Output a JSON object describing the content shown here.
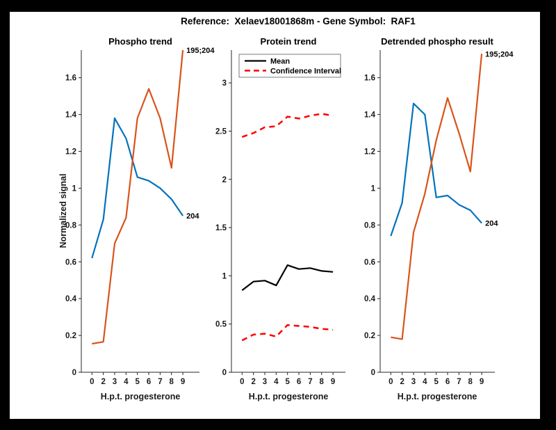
{
  "figure": {
    "title": "Reference:  Xelaev18001868m - Gene Symbol:  RAF1",
    "background": "#ffffff",
    "frame_color": "#000000"
  },
  "colors": {
    "blue": "#0072BD",
    "orange": "#D95319",
    "black": "#000000",
    "red": "#FF0000",
    "axis": "#262626"
  },
  "chart_data": [
    {
      "type": "line",
      "title": "Phospho trend",
      "xlabel": "H.p.t. progesterone",
      "ylabel": "Normalized signal",
      "x_ticklabels": [
        "0",
        "2",
        "3",
        "4",
        "5",
        "6",
        "7",
        "8",
        "9"
      ],
      "y_ticks": [
        0,
        0.2,
        0.4,
        0.6,
        0.8,
        1,
        1.2,
        1.4,
        1.6
      ],
      "y_ticklabels": [
        "0",
        "0.2",
        "0.4",
        "0.6",
        "0.8",
        "1",
        "1.2",
        "1.4",
        "1.6"
      ],
      "ylim": [
        0,
        1.75
      ],
      "grid": false,
      "series": [
        {
          "name": "204",
          "color": "#0072BD",
          "style": "solid",
          "end_label": "204",
          "values": [
            0.62,
            0.83,
            1.38,
            1.27,
            1.06,
            1.04,
            1.0,
            0.94,
            0.85
          ]
        },
        {
          "name": "195;204",
          "color": "#D95319",
          "style": "solid",
          "end_label": "195;204",
          "values": [
            0.155,
            0.165,
            0.7,
            0.84,
            1.38,
            1.54,
            1.38,
            1.11,
            1.75
          ]
        }
      ]
    },
    {
      "type": "line",
      "title": "Protein trend",
      "xlabel": "H.p.t. progesterone",
      "ylabel": "",
      "x_ticklabels": [
        "0",
        "2",
        "3",
        "4",
        "5",
        "6",
        "7",
        "8",
        "9"
      ],
      "y_ticks": [
        0,
        0.5,
        1,
        1.5,
        2,
        2.5,
        3
      ],
      "y_ticklabels": [
        "0",
        "0.5",
        "1",
        "1.5",
        "2",
        "2.5",
        "3"
      ],
      "ylim": [
        0,
        3.34
      ],
      "grid": false,
      "legend": {
        "position": "top-left",
        "items": [
          {
            "label": "Mean",
            "color": "#000000",
            "style": "solid"
          },
          {
            "label": "Confidence Interval",
            "color": "#FF0000",
            "style": "dashed"
          }
        ]
      },
      "series": [
        {
          "name": "Mean",
          "color": "#000000",
          "style": "solid",
          "end_label": "",
          "values": [
            0.85,
            0.94,
            0.95,
            0.9,
            1.11,
            1.07,
            1.08,
            1.05,
            1.04
          ]
        },
        {
          "name": "CI upper",
          "color": "#FF0000",
          "style": "dashed",
          "end_label": "",
          "values": [
            2.44,
            2.48,
            2.54,
            2.55,
            2.65,
            2.63,
            2.66,
            2.68,
            2.66
          ]
        },
        {
          "name": "CI lower",
          "color": "#FF0000",
          "style": "dashed",
          "end_label": "",
          "values": [
            0.33,
            0.39,
            0.4,
            0.37,
            0.49,
            0.48,
            0.47,
            0.45,
            0.44
          ]
        }
      ]
    },
    {
      "type": "line",
      "title": "Detrended phospho result",
      "xlabel": "H.p.t. progesterone",
      "ylabel": "",
      "x_ticklabels": [
        "0",
        "2",
        "3",
        "4",
        "5",
        "6",
        "7",
        "8",
        "9"
      ],
      "y_ticks": [
        0,
        0.2,
        0.4,
        0.6,
        0.8,
        1,
        1.2,
        1.4,
        1.6
      ],
      "y_ticklabels": [
        "0",
        "0.2",
        "0.4",
        "0.6",
        "0.8",
        "1",
        "1.2",
        "1.4",
        "1.6"
      ],
      "ylim": [
        0,
        1.75
      ],
      "grid": false,
      "series": [
        {
          "name": "204",
          "color": "#0072BD",
          "style": "solid",
          "end_label": "204",
          "values": [
            0.74,
            0.92,
            1.46,
            1.4,
            0.95,
            0.96,
            0.91,
            0.88,
            0.81
          ]
        },
        {
          "name": "195;204",
          "color": "#D95319",
          "style": "solid",
          "end_label": "195;204",
          "values": [
            0.19,
            0.18,
            0.76,
            0.97,
            1.26,
            1.49,
            1.3,
            1.09,
            1.73
          ]
        }
      ]
    }
  ]
}
